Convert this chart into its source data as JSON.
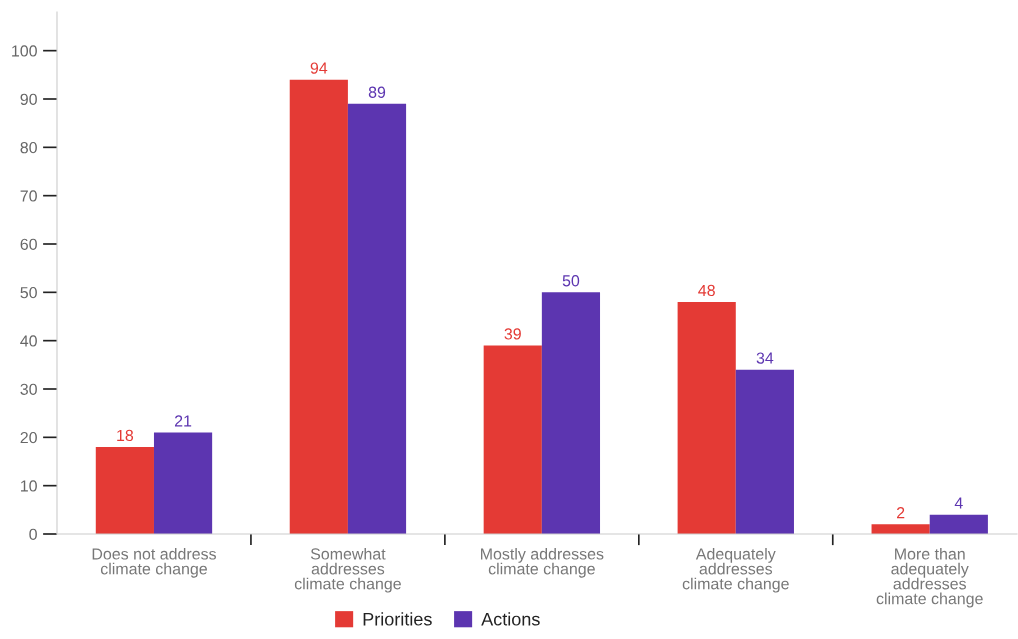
{
  "chart_data": {
    "type": "bar",
    "categories": [
      "Does not address\nclimate change",
      "Somewhat\naddresses\nclimate change",
      "Mostly addresses\nclimate change",
      "Adequately\naddresses\nclimate change",
      "More than\nadequately\naddresses\nclimate change"
    ],
    "series": [
      {
        "name": "Priorities",
        "color": "#e43a35",
        "values": [
          18,
          94,
          39,
          48,
          2
        ]
      },
      {
        "name": "Actions",
        "color": "#5c35b0",
        "values": [
          21,
          89,
          50,
          34,
          4
        ]
      }
    ],
    "ylim": [
      0,
      108
    ],
    "yticks": [
      0,
      10,
      20,
      30,
      40,
      50,
      60,
      70,
      80,
      90,
      100
    ],
    "data_labels": true,
    "legend": "bottom"
  }
}
